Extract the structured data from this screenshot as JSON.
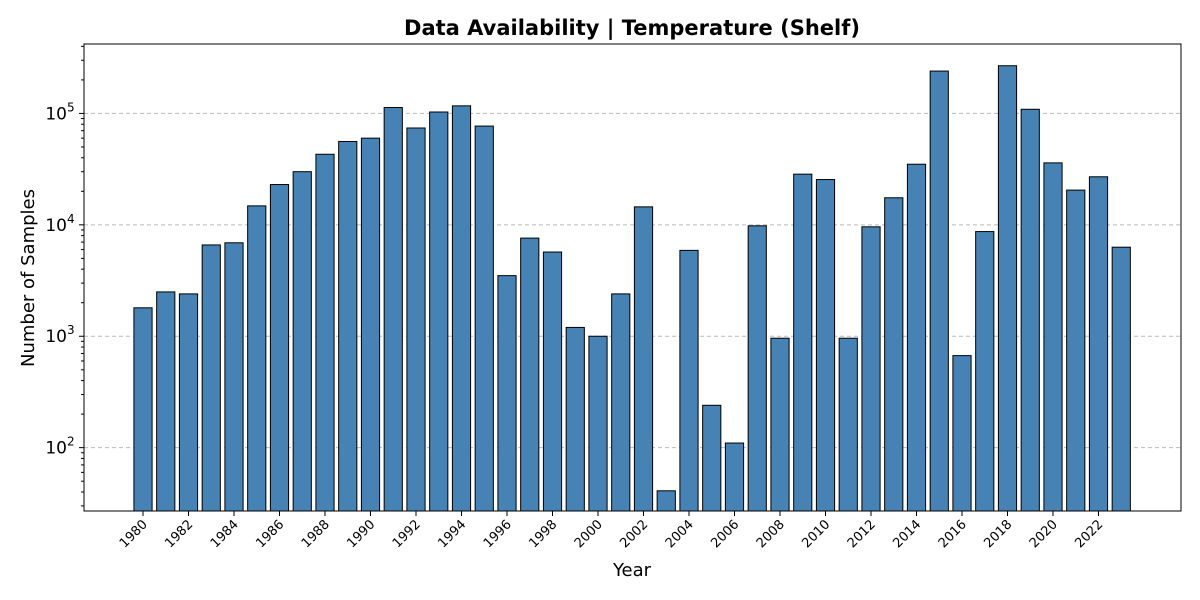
{
  "chart_data": {
    "type": "bar",
    "title": "Data Availability | Temperature (Shelf)",
    "xlabel": "Year",
    "ylabel": "Number of Samples",
    "yscale": "log",
    "ylim": [
      27,
      420000
    ],
    "grid": "y-dashed",
    "bar_color": "#4682b4",
    "edge_color": "#000000",
    "x": [
      1980,
      1981,
      1982,
      1983,
      1984,
      1985,
      1986,
      1987,
      1988,
      1989,
      1990,
      1991,
      1992,
      1993,
      1994,
      1995,
      1996,
      1997,
      1998,
      1999,
      2000,
      2001,
      2002,
      2003,
      2004,
      2005,
      2006,
      2007,
      2008,
      2009,
      2010,
      2011,
      2012,
      2013,
      2014,
      2015,
      2016,
      2017,
      2018,
      2019,
      2020,
      2021,
      2022,
      2023
    ],
    "values": [
      1800,
      2500,
      2400,
      6600,
      6900,
      14800,
      23000,
      30000,
      43000,
      56000,
      60000,
      113000,
      74000,
      103000,
      117000,
      77000,
      3500,
      7600,
      5700,
      1200,
      1000,
      2400,
      14500,
      41,
      5900,
      240,
      110,
      9800,
      960,
      28500,
      25500,
      960,
      9600,
      17500,
      35000,
      240000,
      670,
      8700,
      268000,
      109000,
      36000,
      20500,
      27000,
      6300
    ],
    "xticks": [
      "1980",
      "1982",
      "1984",
      "1986",
      "1988",
      "1990",
      "1992",
      "1994",
      "1996",
      "1998",
      "2000",
      "2002",
      "2004",
      "2006",
      "2008",
      "2010",
      "2012",
      "2014",
      "2016",
      "2018",
      "2020",
      "2022"
    ],
    "yticks": [
      {
        "value": 100,
        "base": "10",
        "exp": "2"
      },
      {
        "value": 1000,
        "base": "10",
        "exp": "3"
      },
      {
        "value": 10000,
        "base": "10",
        "exp": "4"
      },
      {
        "value": 100000,
        "base": "10",
        "exp": "5"
      }
    ]
  }
}
